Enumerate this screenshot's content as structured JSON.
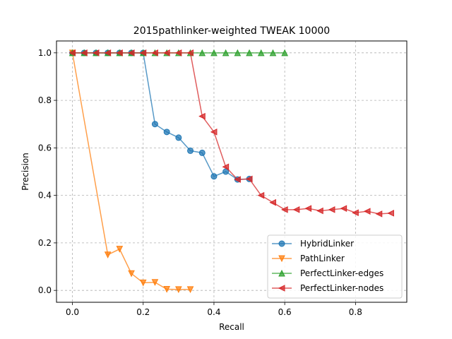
{
  "chart_data": {
    "type": "line",
    "title": "2015pathlinker-weighted TWEAK 10000",
    "xlabel": "Recall",
    "ylabel": "Precision",
    "xlim": [
      -0.045,
      0.945
    ],
    "ylim": [
      -0.05,
      1.05
    ],
    "xticks": [
      0.0,
      0.2,
      0.4,
      0.6,
      0.8
    ],
    "xtick_labels": [
      "0.0",
      "0.2",
      "0.4",
      "0.6",
      "0.8"
    ],
    "yticks": [
      0.0,
      0.2,
      0.4,
      0.6,
      0.8,
      1.0
    ],
    "ytick_labels": [
      "0.0",
      "0.2",
      "0.4",
      "0.6",
      "0.8",
      "1.0"
    ],
    "grid": true,
    "legend_position": "lower-right",
    "series": [
      {
        "name": "HybridLinker",
        "color": "#1f77b4",
        "marker": "circle",
        "x": [
          0.0,
          0.0333,
          0.0667,
          0.1,
          0.1333,
          0.1667,
          0.2,
          0.2333,
          0.2667,
          0.3,
          0.3333,
          0.3667,
          0.4,
          0.4333,
          0.4667,
          0.5
        ],
        "y": [
          1.0,
          1.0,
          1.0,
          1.0,
          1.0,
          1.0,
          1.0,
          0.7,
          0.667,
          0.643,
          0.588,
          0.579,
          0.48,
          0.5,
          0.467,
          0.469
        ]
      },
      {
        "name": "PathLinker",
        "color": "#ff7f0e",
        "marker": "triangle-down",
        "x": [
          0.0,
          0.1,
          0.1333,
          0.1667,
          0.2,
          0.2333,
          0.2667,
          0.3,
          0.3333
        ],
        "y": [
          1.0,
          0.15,
          0.174,
          0.071,
          0.032,
          0.034,
          0.005,
          0.004,
          0.004
        ]
      },
      {
        "name": "PerfectLinker-edges",
        "color": "#2ca02c",
        "marker": "triangle-up",
        "x": [
          0.0,
          0.0333,
          0.0667,
          0.1,
          0.1333,
          0.1667,
          0.2,
          0.2333,
          0.2667,
          0.3,
          0.3333,
          0.3667,
          0.4,
          0.4333,
          0.4667,
          0.5,
          0.5333,
          0.5667,
          0.6
        ],
        "y": [
          1.0,
          1.0,
          1.0,
          1.0,
          1.0,
          1.0,
          1.0,
          1.0,
          1.0,
          1.0,
          1.0,
          1.0,
          1.0,
          1.0,
          1.0,
          1.0,
          1.0,
          1.0,
          1.0
        ]
      },
      {
        "name": "PerfectLinker-nodes",
        "color": "#d62728",
        "marker": "triangle-left",
        "x": [
          0.0,
          0.0333,
          0.0667,
          0.1,
          0.1333,
          0.1667,
          0.2,
          0.2333,
          0.2667,
          0.3,
          0.3333,
          0.3667,
          0.4,
          0.4333,
          0.4667,
          0.5,
          0.5333,
          0.5667,
          0.6,
          0.6333,
          0.6667,
          0.7,
          0.7333,
          0.7667,
          0.8,
          0.8333,
          0.8667,
          0.9
        ],
        "y": [
          1.0,
          1.0,
          1.0,
          1.0,
          1.0,
          1.0,
          1.0,
          1.0,
          1.0,
          1.0,
          1.0,
          0.733,
          0.667,
          0.52,
          0.467,
          0.469,
          0.4,
          0.37,
          0.34,
          0.34,
          0.345,
          0.335,
          0.34,
          0.345,
          0.327,
          0.333,
          0.322,
          0.325
        ]
      }
    ]
  }
}
